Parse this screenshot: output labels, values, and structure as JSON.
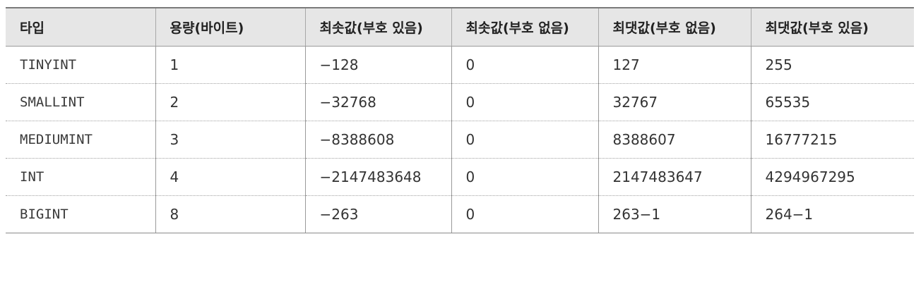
{
  "table": {
    "headers": [
      "타입",
      "용량(바이트)",
      "최솟값(부호 있음)",
      "최솟값(부호 없음)",
      "최댓값(부호 없음)",
      "최댓값(부호 있음)"
    ],
    "rows": [
      [
        "TINYINT",
        "1",
        "−128",
        "0",
        "127",
        "255"
      ],
      [
        "SMALLINT",
        "2",
        "−32768",
        "0",
        "32767",
        "65535"
      ],
      [
        "MEDIUMINT",
        "3",
        "−8388608",
        "0",
        "8388607",
        "16777215"
      ],
      [
        "INT",
        "4",
        "−2147483648",
        "0",
        "2147483647",
        "4294967295"
      ],
      [
        "BIGINT",
        "8",
        "−263",
        "0",
        "263−1",
        "264−1"
      ]
    ]
  }
}
